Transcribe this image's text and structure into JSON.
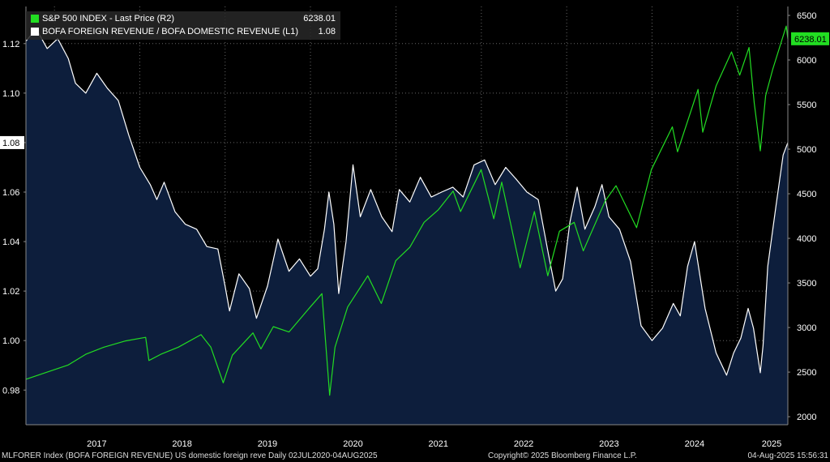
{
  "legend": [
    {
      "label": "S&P 500 INDEX - Last Price (R2)",
      "value": "6238.01",
      "color": "#22dd22"
    },
    {
      "label": "BOFA FOREIGN REVENUE / BOFA DOMESTIC REVENUE (L1)",
      "value": "1.08",
      "color": "#ffffff"
    }
  ],
  "footer": {
    "left": "MLFORER Index (BOFA FOREIGN REVENUE) US domestic foreign reve  Daily 02JUL2020-04AUG2025",
    "center": "Copyright© 2025 Bloomberg Finance L.P.",
    "right": "04-Aug-2025 15:56:31"
  },
  "colors": {
    "background": "#000000",
    "area_fill": "#0d1e3c",
    "ratio_line": "#ffffff",
    "spx_line": "#22dd22",
    "grid": "#666666"
  },
  "chart_data": {
    "type": "line",
    "x_ticks": [
      "2017",
      "2018",
      "2019",
      "2020",
      "2021",
      "2022",
      "2023",
      "2024",
      "2025"
    ],
    "xlim": [
      "2016-09-01",
      "2025-08-04"
    ],
    "left_axis": {
      "ticks": [
        "0.98",
        "1.00",
        "1.02",
        "1.04",
        "1.06",
        "1.08",
        "1.10",
        "1.12"
      ],
      "ylim": [
        0.966,
        1.135
      ],
      "last_value_label": "1.08"
    },
    "right_axis": {
      "ticks": [
        "2000",
        "2500",
        "3000",
        "3500",
        "4000",
        "4500",
        "5000",
        "5500",
        "6000",
        "6500"
      ],
      "ylim": [
        1910,
        6600
      ],
      "last_value_label": "6238.01"
    },
    "grid": true,
    "series": [
      {
        "name": "BOFA FOREIGN REVENUE / BOFA DOMESTIC REVENUE (L1)",
        "axis": "left",
        "style": "area",
        "points": [
          [
            "2016-09-01",
            1.121
          ],
          [
            "2016-10-15",
            1.126
          ],
          [
            "2016-12-01",
            1.118
          ],
          [
            "2017-01-15",
            1.122
          ],
          [
            "2017-03-01",
            1.114
          ],
          [
            "2017-04-01",
            1.104
          ],
          [
            "2017-05-15",
            1.1
          ],
          [
            "2017-07-01",
            1.108
          ],
          [
            "2017-08-15",
            1.102
          ],
          [
            "2017-10-01",
            1.097
          ],
          [
            "2017-11-15",
            1.083
          ],
          [
            "2018-01-01",
            1.07
          ],
          [
            "2018-02-15",
            1.063
          ],
          [
            "2018-03-15",
            1.057
          ],
          [
            "2018-04-15",
            1.064
          ],
          [
            "2018-06-01",
            1.052
          ],
          [
            "2018-07-15",
            1.047
          ],
          [
            "2018-09-01",
            1.045
          ],
          [
            "2018-10-15",
            1.038
          ],
          [
            "2018-12-01",
            1.037
          ],
          [
            "2019-01-01",
            1.022
          ],
          [
            "2019-01-20",
            1.012
          ],
          [
            "2019-03-01",
            1.027
          ],
          [
            "2019-04-15",
            1.021
          ],
          [
            "2019-05-15",
            1.009
          ],
          [
            "2019-07-01",
            1.022
          ],
          [
            "2019-08-15",
            1.041
          ],
          [
            "2019-10-01",
            1.028
          ],
          [
            "2019-11-15",
            1.033
          ],
          [
            "2020-01-01",
            1.026
          ],
          [
            "2020-02-01",
            1.029
          ],
          [
            "2020-03-01",
            1.045
          ],
          [
            "2020-03-20",
            1.06
          ],
          [
            "2020-04-10",
            1.047
          ],
          [
            "2020-05-01",
            1.019
          ],
          [
            "2020-06-01",
            1.04
          ],
          [
            "2020-07-01",
            1.071
          ],
          [
            "2020-08-01",
            1.05
          ],
          [
            "2020-09-15",
            1.061
          ],
          [
            "2020-11-01",
            1.05
          ],
          [
            "2020-12-15",
            1.044
          ],
          [
            "2021-01-15",
            1.061
          ],
          [
            "2021-03-01",
            1.056
          ],
          [
            "2021-04-15",
            1.066
          ],
          [
            "2021-06-01",
            1.058
          ],
          [
            "2021-07-15",
            1.06
          ],
          [
            "2021-09-01",
            1.062
          ],
          [
            "2021-10-15",
            1.058
          ],
          [
            "2021-12-01",
            1.071
          ],
          [
            "2022-01-15",
            1.073
          ],
          [
            "2022-03-01",
            1.063
          ],
          [
            "2022-04-15",
            1.07
          ],
          [
            "2022-06-01",
            1.065
          ],
          [
            "2022-07-15",
            1.06
          ],
          [
            "2022-09-01",
            1.057
          ],
          [
            "2022-10-15",
            1.035
          ],
          [
            "2022-11-15",
            1.02
          ],
          [
            "2022-12-15",
            1.025
          ],
          [
            "2023-01-15",
            1.048
          ],
          [
            "2023-02-15",
            1.062
          ],
          [
            "2023-03-20",
            1.045
          ],
          [
            "2023-05-01",
            1.054
          ],
          [
            "2023-06-01",
            1.063
          ],
          [
            "2023-07-01",
            1.05
          ],
          [
            "2023-08-15",
            1.045
          ],
          [
            "2023-10-01",
            1.032
          ],
          [
            "2023-11-15",
            1.006
          ],
          [
            "2024-01-01",
            1.0
          ],
          [
            "2024-02-15",
            1.005
          ],
          [
            "2024-04-01",
            1.015
          ],
          [
            "2024-05-01",
            1.01
          ],
          [
            "2024-06-01",
            1.03
          ],
          [
            "2024-07-01",
            1.04
          ],
          [
            "2024-08-15",
            1.013
          ],
          [
            "2024-10-01",
            0.995
          ],
          [
            "2024-11-15",
            0.986
          ],
          [
            "2024-12-15",
            0.995
          ],
          [
            "2025-01-15",
            1.001
          ],
          [
            "2025-02-15",
            1.013
          ],
          [
            "2025-03-10",
            1.005
          ],
          [
            "2025-04-08",
            0.987
          ],
          [
            "2025-04-20",
            0.998
          ],
          [
            "2025-05-10",
            1.03
          ],
          [
            "2025-06-15",
            1.055
          ],
          [
            "2025-07-15",
            1.075
          ],
          [
            "2025-08-04",
            1.08
          ]
        ]
      },
      {
        "name": "S&P 500 INDEX - Last Price (R2)",
        "axis": "right",
        "style": "line",
        "points": [
          [
            "2016-09-01",
            2420
          ],
          [
            "2016-12-01",
            2500
          ],
          [
            "2017-03-01",
            2580
          ],
          [
            "2017-05-15",
            2700
          ],
          [
            "2017-08-01",
            2780
          ],
          [
            "2017-11-01",
            2850
          ],
          [
            "2018-01-26",
            2890
          ],
          [
            "2018-02-09",
            2630
          ],
          [
            "2018-04-01",
            2700
          ],
          [
            "2018-06-15",
            2780
          ],
          [
            "2018-09-20",
            2920
          ],
          [
            "2018-11-01",
            2780
          ],
          [
            "2018-12-24",
            2380
          ],
          [
            "2019-02-01",
            2690
          ],
          [
            "2019-04-30",
            2940
          ],
          [
            "2019-06-03",
            2760
          ],
          [
            "2019-07-26",
            3010
          ],
          [
            "2019-10-01",
            2950
          ],
          [
            "2019-12-31",
            3230
          ],
          [
            "2020-02-19",
            3380
          ],
          [
            "2020-03-23",
            2240
          ],
          [
            "2020-04-15",
            2780
          ],
          [
            "2020-06-08",
            3230
          ],
          [
            "2020-09-02",
            3580
          ],
          [
            "2020-10-30",
            3270
          ],
          [
            "2020-12-31",
            3750
          ],
          [
            "2021-03-01",
            3900
          ],
          [
            "2021-05-01",
            4180
          ],
          [
            "2021-07-01",
            4320
          ],
          [
            "2021-09-02",
            4530
          ],
          [
            "2021-10-04",
            4300
          ],
          [
            "2021-12-31",
            4770
          ],
          [
            "2022-02-23",
            4220
          ],
          [
            "2022-03-29",
            4630
          ],
          [
            "2022-06-16",
            3670
          ],
          [
            "2022-08-16",
            4300
          ],
          [
            "2022-10-12",
            3580
          ],
          [
            "2022-12-01",
            4080
          ],
          [
            "2023-02-02",
            4180
          ],
          [
            "2023-03-13",
            3860
          ],
          [
            "2023-06-15",
            4420
          ],
          [
            "2023-07-31",
            4590
          ],
          [
            "2023-10-27",
            4120
          ],
          [
            "2023-12-29",
            4770
          ],
          [
            "2024-03-28",
            5250
          ],
          [
            "2024-04-19",
            4970
          ],
          [
            "2024-07-16",
            5670
          ],
          [
            "2024-08-05",
            5190
          ],
          [
            "2024-10-01",
            5710
          ],
          [
            "2024-12-06",
            6090
          ],
          [
            "2025-01-10",
            5830
          ],
          [
            "2025-02-19",
            6140
          ],
          [
            "2025-03-13",
            5520
          ],
          [
            "2025-04-08",
            4980
          ],
          [
            "2025-05-01",
            5600
          ],
          [
            "2025-06-01",
            5900
          ],
          [
            "2025-07-28",
            6380
          ],
          [
            "2025-08-04",
            6238
          ]
        ]
      }
    ]
  }
}
